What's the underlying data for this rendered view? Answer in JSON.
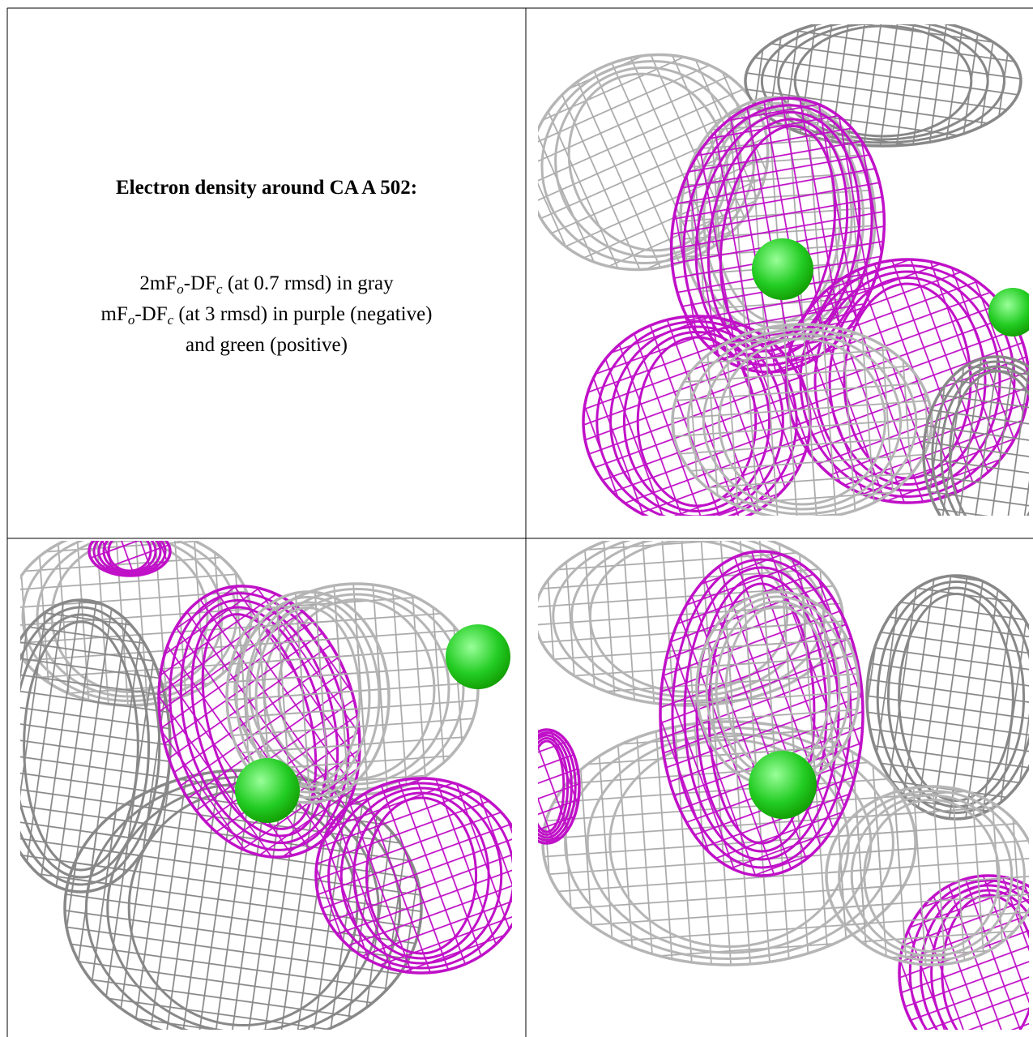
{
  "caption": {
    "title": "Electron density around CA A 502:",
    "lines": [
      [
        "2mF",
        "o",
        "-DF",
        "c",
        " (at 0.7 rmsd) in gray"
      ],
      [
        "mF",
        "o",
        "-DF",
        "c",
        " (at 3 rmsd) in purple (negative)"
      ],
      [
        "and green (positive)"
      ]
    ]
  }
}
